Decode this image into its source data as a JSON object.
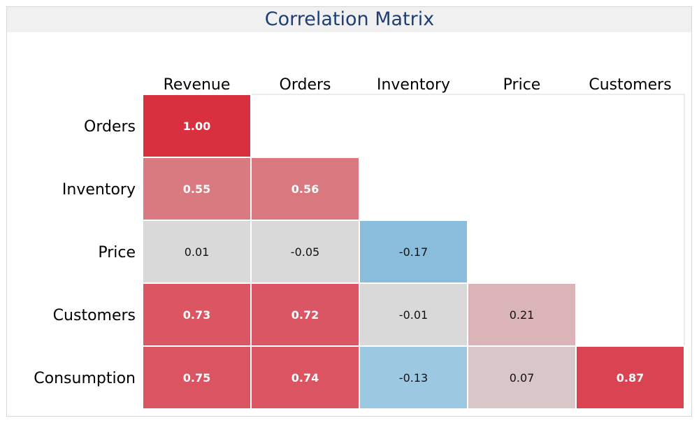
{
  "chart_data": {
    "type": "heatmap",
    "title": "Correlation Matrix",
    "columns": [
      "Revenue",
      "Orders",
      "Inventory",
      "Price",
      "Customers"
    ],
    "rows": [
      "Orders",
      "Inventory",
      "Price",
      "Customers",
      "Consumption"
    ],
    "values": [
      [
        1.0,
        null,
        null,
        null,
        null
      ],
      [
        0.55,
        0.56,
        null,
        null,
        null
      ],
      [
        0.01,
        -0.05,
        -0.17,
        null,
        null
      ],
      [
        0.73,
        0.72,
        -0.01,
        0.21,
        null
      ],
      [
        0.75,
        0.74,
        -0.13,
        0.07,
        0.87
      ]
    ],
    "value_labels": [
      [
        "1.00",
        "",
        "",
        "",
        ""
      ],
      [
        "0.55",
        "0.56",
        "",
        "",
        ""
      ],
      [
        "0.01",
        "-0.05",
        "-0.17",
        "",
        ""
      ],
      [
        "0.73",
        "0.72",
        "-0.01",
        "0.21",
        ""
      ],
      [
        "0.75",
        "0.74",
        "-0.13",
        "0.07",
        "0.87"
      ]
    ],
    "colors": {
      "1.00": "#d9303f",
      "0.87": "#da4352",
      "0.75": "#db5462",
      "0.74": "#db5462",
      "0.73": "#db5563",
      "0.72": "#db5664",
      "0.56": "#d9797f",
      "0.55": "#d97a80",
      "0.21": "#dbb4b8",
      "0.07": "#d8c6c8",
      "0.01": "#d9d9d9",
      "-0.01": "#d9d9d9",
      "-0.05": "#d9d9d9",
      "-0.13": "#9cc8e2",
      "-0.17": "#8abddc"
    },
    "label_colors": {
      "strong": "#ffffff",
      "weak": "#111111"
    },
    "vlim": [
      -1,
      1
    ]
  }
}
